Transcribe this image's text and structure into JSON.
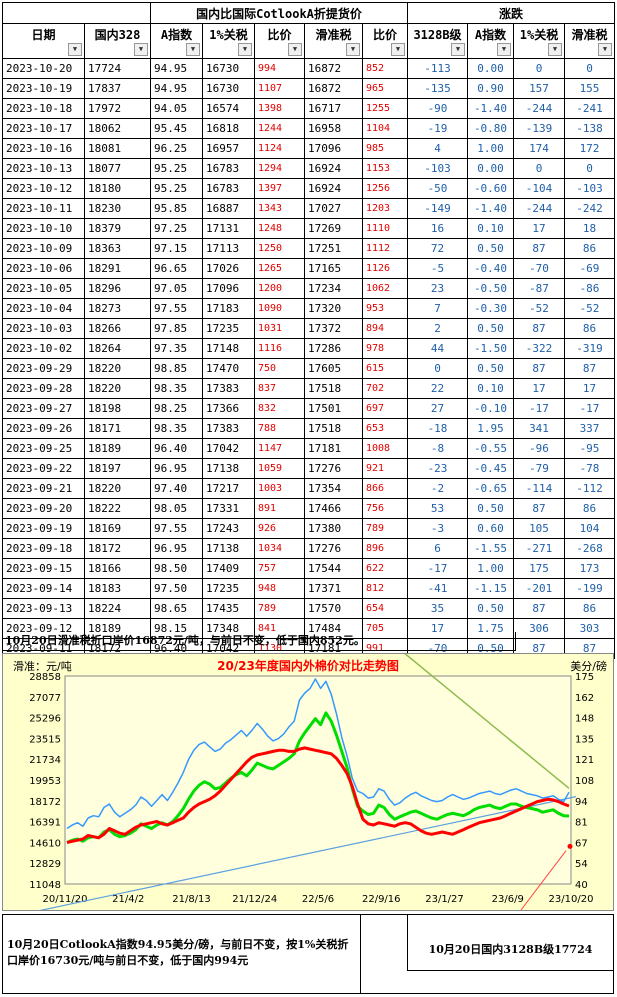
{
  "headers": {
    "group_left": "国内比国际CotlookA折提货价",
    "group_right": "涨跌",
    "columns": [
      "日期",
      "国内328",
      "A指数",
      "1%关税",
      "比价",
      "滑准税",
      "比价",
      "3128B级",
      "A指数",
      "1%关税",
      "滑准税"
    ]
  },
  "rows": [
    [
      "2023-10-20",
      "17724",
      "94.95",
      "16730",
      "994",
      "16872",
      "852",
      "-113",
      "0.00",
      "0",
      "0"
    ],
    [
      "2023-10-19",
      "17837",
      "94.95",
      "16730",
      "1107",
      "16872",
      "965",
      "-135",
      "0.90",
      "157",
      "155"
    ],
    [
      "2023-10-18",
      "17972",
      "94.05",
      "16574",
      "1398",
      "16717",
      "1255",
      "-90",
      "-1.40",
      "-244",
      "-241"
    ],
    [
      "2023-10-17",
      "18062",
      "95.45",
      "16818",
      "1244",
      "16958",
      "1104",
      "-19",
      "-0.80",
      "-139",
      "-138"
    ],
    [
      "2023-10-16",
      "18081",
      "96.25",
      "16957",
      "1124",
      "17096",
      "985",
      "4",
      "1.00",
      "174",
      "172"
    ],
    [
      "2023-10-13",
      "18077",
      "95.25",
      "16783",
      "1294",
      "16924",
      "1153",
      "-103",
      "0.00",
      "0",
      "0"
    ],
    [
      "2023-10-12",
      "18180",
      "95.25",
      "16783",
      "1397",
      "16924",
      "1256",
      "-50",
      "-0.60",
      "-104",
      "-103"
    ],
    [
      "2023-10-11",
      "18230",
      "95.85",
      "16887",
      "1343",
      "17027",
      "1203",
      "-149",
      "-1.40",
      "-244",
      "-242"
    ],
    [
      "2023-10-10",
      "18379",
      "97.25",
      "17131",
      "1248",
      "17269",
      "1110",
      "16",
      "0.10",
      "17",
      "18"
    ],
    [
      "2023-10-09",
      "18363",
      "97.15",
      "17113",
      "1250",
      "17251",
      "1112",
      "72",
      "0.50",
      "87",
      "86"
    ],
    [
      "2023-10-06",
      "18291",
      "96.65",
      "17026",
      "1265",
      "17165",
      "1126",
      "-5",
      "-0.40",
      "-70",
      "-69"
    ],
    [
      "2023-10-05",
      "18296",
      "97.05",
      "17096",
      "1200",
      "17234",
      "1062",
      "23",
      "-0.50",
      "-87",
      "-86"
    ],
    [
      "2023-10-04",
      "18273",
      "97.55",
      "17183",
      "1090",
      "17320",
      "953",
      "7",
      "-0.30",
      "-52",
      "-52"
    ],
    [
      "2023-10-03",
      "18266",
      "97.85",
      "17235",
      "1031",
      "17372",
      "894",
      "2",
      "0.50",
      "87",
      "86"
    ],
    [
      "2023-10-02",
      "18264",
      "97.35",
      "17148",
      "1116",
      "17286",
      "978",
      "44",
      "-1.50",
      "-322",
      "-319"
    ],
    [
      "2023-09-29",
      "18220",
      "98.85",
      "17470",
      "750",
      "17605",
      "615",
      "0",
      "0.50",
      "87",
      "87"
    ],
    [
      "2023-09-28",
      "18220",
      "98.35",
      "17383",
      "837",
      "17518",
      "702",
      "22",
      "0.10",
      "17",
      "17"
    ],
    [
      "2023-09-27",
      "18198",
      "98.25",
      "17366",
      "832",
      "17501",
      "697",
      "27",
      "-0.10",
      "-17",
      "-17"
    ],
    [
      "2023-09-26",
      "18171",
      "98.35",
      "17383",
      "788",
      "17518",
      "653",
      "-18",
      "1.95",
      "341",
      "337"
    ],
    [
      "2023-09-25",
      "18189",
      "96.40",
      "17042",
      "1147",
      "17181",
      "1008",
      "-8",
      "-0.55",
      "-96",
      "-95"
    ],
    [
      "2023-09-22",
      "18197",
      "96.95",
      "17138",
      "1059",
      "17276",
      "921",
      "-23",
      "-0.45",
      "-79",
      "-78"
    ],
    [
      "2023-09-21",
      "18220",
      "97.40",
      "17217",
      "1003",
      "17354",
      "866",
      "-2",
      "-0.65",
      "-114",
      "-112"
    ],
    [
      "2023-09-20",
      "18222",
      "98.05",
      "17331",
      "891",
      "17466",
      "756",
      "53",
      "0.50",
      "87",
      "86"
    ],
    [
      "2023-09-19",
      "18169",
      "97.55",
      "17243",
      "926",
      "17380",
      "789",
      "-3",
      "0.60",
      "105",
      "104"
    ],
    [
      "2023-09-18",
      "18172",
      "96.95",
      "17138",
      "1034",
      "17276",
      "896",
      "6",
      "-1.55",
      "-271",
      "-268"
    ],
    [
      "2023-09-15",
      "18166",
      "98.50",
      "17409",
      "757",
      "17544",
      "622",
      "-17",
      "1.00",
      "175",
      "173"
    ],
    [
      "2023-09-14",
      "18183",
      "97.50",
      "17235",
      "948",
      "17371",
      "812",
      "-41",
      "-1.15",
      "-201",
      "-199"
    ],
    [
      "2023-09-13",
      "18224",
      "98.65",
      "17435",
      "789",
      "17570",
      "654",
      "35",
      "0.50",
      "87",
      "86"
    ],
    [
      "2023-09-12",
      "18189",
      "98.15",
      "17348",
      "841",
      "17484",
      "705",
      "17",
      "1.75",
      "306",
      "303"
    ],
    [
      "2023-09-11",
      "18172",
      "96.40",
      "17042",
      "1130",
      "17181",
      "991",
      "-70",
      "0.50",
      "87",
      "87"
    ]
  ],
  "note_top": "10月20日滑准税折口岸价16872元/吨，与前日不变，低于国内852元。",
  "note_bottom_left": "10月20日CotlookA指数94.95美分/磅，与前日不变，按1%关税折口岸价16730元/吨与前日不变，低于国内994元",
  "note_bottom_right": "10月20日国内3128B级17724",
  "chart_data": {
    "type": "line",
    "title": "20/23年度国内外棉价对比走势图",
    "ylabel_left": "滑准：元/吨",
    "ylabel_right": "美分/磅",
    "x_ticks": [
      "20/11/20",
      "21/4/2",
      "21/8/13",
      "21/12/24",
      "22/5/6",
      "22/9/16",
      "23/1/27",
      "23/6/9",
      "23/10/20"
    ],
    "y_left_ticks": [
      "11048",
      "12829",
      "14610",
      "16391",
      "18172",
      "19953",
      "21734",
      "23515",
      "25296",
      "27077",
      "28858"
    ],
    "y_right_ticks": [
      "40",
      "54",
      "67",
      "81",
      "94",
      "108",
      "121",
      "135",
      "148",
      "162",
      "175"
    ],
    "y_left_range": [
      11048,
      28858
    ],
    "y_right_range": [
      40,
      175
    ],
    "colors": {
      "domestic": "#ff0000",
      "sliding_tax": "#00dd00",
      "a_index": "#3399ff",
      "trend1": "#5aa0e0",
      "trend2": "#8dbb4f",
      "trend3": "#ff4444"
    },
    "series": [
      {
        "key": "domestic",
        "values": [
          14600,
          14700,
          14800,
          14900,
          15200,
          15100,
          15000,
          15300,
          15800,
          15600,
          15400,
          15300,
          15600,
          15900,
          16100,
          16200,
          16300,
          16400,
          16200,
          16100,
          16300,
          16500,
          16700,
          17200,
          17600,
          17900,
          18100,
          18300,
          18600,
          19000,
          19500,
          20000,
          20500,
          21000,
          21500,
          21900,
          22100,
          22200,
          22300,
          22400,
          22500,
          22500,
          22400,
          22400,
          22600,
          22700,
          22600,
          22500,
          22400,
          22300,
          22200,
          21800,
          21200,
          20500,
          19400,
          17900,
          16600,
          16200,
          16100,
          16300,
          16200,
          16100,
          16000,
          16200,
          16300,
          16200,
          15900,
          15600,
          15400,
          15300,
          15400,
          15500,
          15400,
          15300,
          15500,
          15700,
          15900,
          16100,
          16300,
          16400,
          16500,
          16600,
          16700,
          16900,
          17100,
          17300,
          17500,
          17700,
          17900,
          18100,
          18200,
          18300,
          18250,
          18100,
          17900,
          17724
        ]
      },
      {
        "key": "sliding_tax",
        "values": [
          14600,
          14800,
          14900,
          14700,
          15000,
          15100,
          15000,
          15500,
          15700,
          15300,
          15100,
          15200,
          15400,
          15700,
          16200,
          16000,
          15800,
          16100,
          16300,
          16100,
          16400,
          16900,
          17500,
          18300,
          19000,
          19500,
          19800,
          19600,
          19200,
          19300,
          19700,
          20100,
          20400,
          20600,
          20300,
          20800,
          21400,
          21200,
          21000,
          20900,
          21200,
          21500,
          21800,
          22200,
          23300,
          24000,
          24600,
          25200,
          24700,
          25700,
          25000,
          23800,
          22400,
          21000,
          19200,
          17700,
          17300,
          17000,
          17100,
          17800,
          17600,
          17000,
          16600,
          16800,
          17000,
          17200,
          17300,
          17100,
          16900,
          16700,
          16600,
          16800,
          17000,
          17100,
          17000,
          16900,
          17100,
          17400,
          17600,
          17700,
          17800,
          17600,
          17500,
          17700,
          17900,
          17900,
          17700,
          17600,
          17500,
          17400,
          17200,
          17300,
          17400,
          17100,
          16900,
          16872
        ]
      },
      {
        "key": "a_index",
        "values": [
          15800,
          16100,
          16300,
          16000,
          16700,
          16900,
          16800,
          17600,
          17900,
          17200,
          16800,
          17100,
          17400,
          17800,
          18500,
          18200,
          17700,
          18200,
          18700,
          18200,
          18900,
          19700,
          20600,
          21700,
          22500,
          23000,
          23200,
          22800,
          22400,
          22600,
          23100,
          23400,
          23800,
          24200,
          23700,
          24200,
          24800,
          24300,
          23700,
          23300,
          23500,
          23900,
          24500,
          25000,
          26800,
          27400,
          27800,
          28600,
          27800,
          28400,
          27300,
          25600,
          23600,
          22000,
          20100,
          19000,
          18800,
          18400,
          18500,
          19200,
          19000,
          18300,
          17800,
          18000,
          18400,
          18700,
          18900,
          18600,
          18400,
          18200,
          18100,
          18200,
          18500,
          18700,
          18500,
          18300,
          18400,
          18600,
          18800,
          18900,
          19000,
          18800,
          18700,
          18900,
          19100,
          19200,
          19000,
          18800,
          18700,
          18600,
          18400,
          18500,
          18600,
          18300,
          18100,
          18900
        ]
      }
    ]
  }
}
